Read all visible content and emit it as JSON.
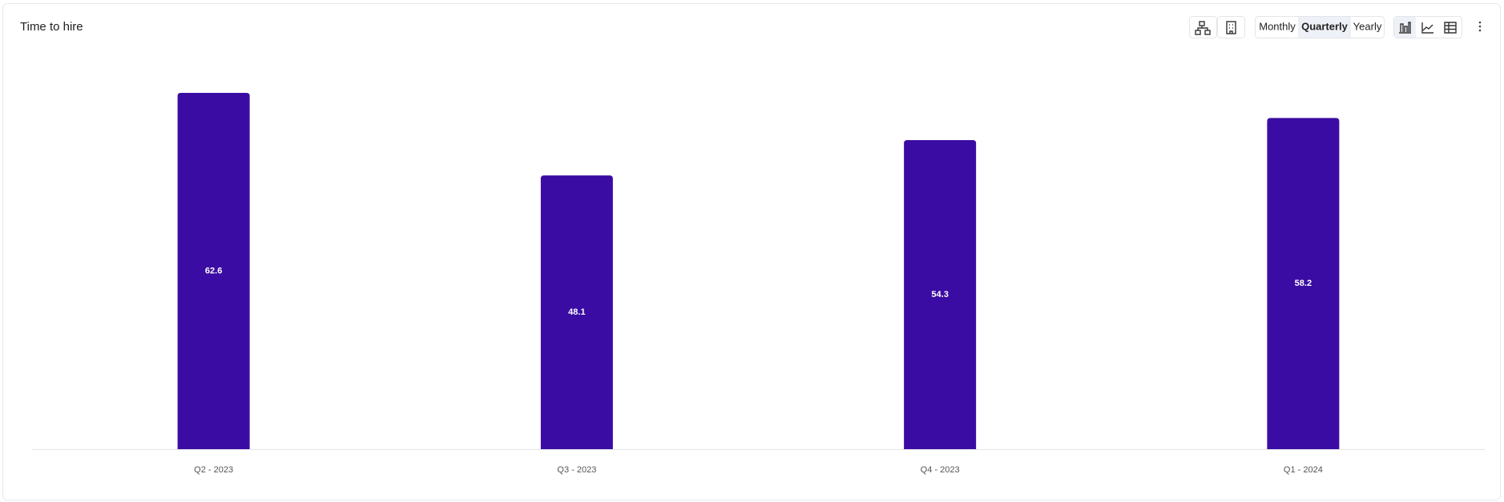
{
  "chart_data": {
    "type": "bar",
    "title": "Time to hire",
    "period_options": [
      "Monthly",
      "Quarterly",
      "Yearly"
    ],
    "selected_period": "Quarterly",
    "categories": [
      "Q2 - 2023",
      "Q3 - 2023",
      "Q4 - 2023",
      "Q1 - 2024"
    ],
    "values": [
      62.6,
      48.1,
      54.3,
      58.2
    ],
    "color": "#3b0ca3",
    "ylim": [
      0,
      65
    ],
    "grid": false
  }
}
